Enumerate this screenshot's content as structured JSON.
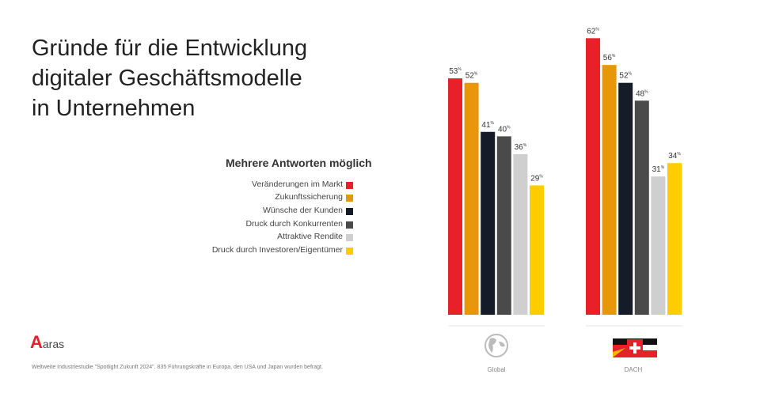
{
  "title_lines": [
    "Gründe für die Entwicklung",
    "digitaler Geschäftsmodelle",
    "in Unternehmen"
  ],
  "subtitle": "Mehrere Antworten möglich",
  "footer": "Weltweite Industriestudie \"Spotlight Zukunft 2024\". 835 Führungskräfte in Europa, den USA und Japan wurden befragt.",
  "logo": "aras",
  "chart_data": {
    "type": "bar",
    "categories": [
      "Global",
      "DACH"
    ],
    "category_icons": [
      "globe-icon",
      "dach-flag-icon"
    ],
    "unit": "%",
    "ylim": [
      0,
      70
    ],
    "grid": false,
    "legend_placement": "left",
    "series": [
      {
        "name": "Veränderungen im Markt",
        "color": "#e8202a",
        "values": [
          53,
          62
        ]
      },
      {
        "name": "Zukunftssicherung",
        "color": "#e8960a",
        "values": [
          52,
          56
        ]
      },
      {
        "name": "Wünsche der Kunden",
        "color": "#161b2a",
        "values": [
          41,
          52
        ]
      },
      {
        "name": "Druck durch Konkurrenten",
        "color": "#4a4a4a",
        "values": [
          40,
          48
        ]
      },
      {
        "name": "Attraktive Rendite",
        "color": "#cfcfcf",
        "values": [
          36,
          31
        ]
      },
      {
        "name": "Druck durch Investoren/Eigentümer",
        "color": "#ffcc00",
        "values": [
          29,
          34
        ]
      }
    ]
  }
}
